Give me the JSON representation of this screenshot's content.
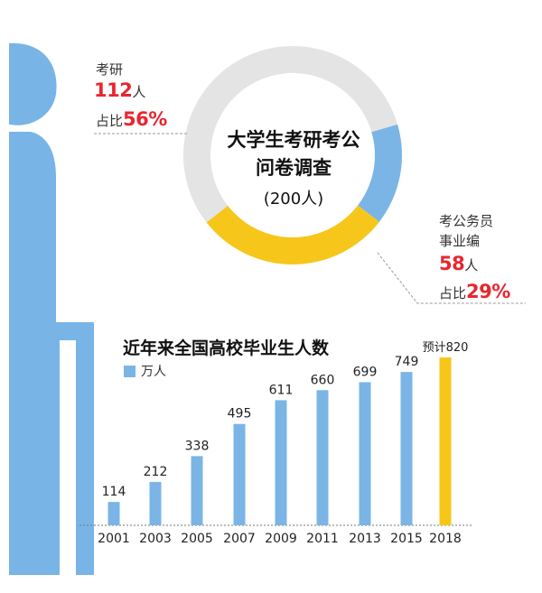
{
  "colors": {
    "blue": "#7ab5e6",
    "yellow": "#f6c61a",
    "gray": "#e4e4e4",
    "red": "#e8262f",
    "figure": "#78b4e6"
  },
  "survey": {
    "title_line1": "大学生考研考公",
    "title_line2": "问卷调查",
    "total": "(200人)",
    "kaoyan": {
      "label": "考研",
      "count": "112",
      "count_unit": "人",
      "share_label": "占比",
      "share": "56%"
    },
    "gongwu": {
      "label1": "考公务员",
      "label2": "事业编",
      "count": "58",
      "count_unit": "人",
      "share_label": "占比",
      "share": "29%"
    }
  },
  "bar_chart": {
    "title": "近年来全国高校毕业生人数",
    "legend": "万人"
  },
  "chart_data": [
    {
      "type": "pie",
      "title": "大学生考研考公问卷调查",
      "subtitle": "(200人)",
      "slices": [
        {
          "label": "考研",
          "value": 112,
          "percent": 56,
          "color": "#e4e4e4"
        },
        {
          "label": "考公务员事业编",
          "value": 58,
          "percent": 29,
          "color": "#f6c61a"
        },
        {
          "label": "",
          "value": 30,
          "percent": 15,
          "color": "#7ab5e6"
        }
      ]
    },
    {
      "type": "bar",
      "title": "近年来全国高校毕业生人数",
      "categories": [
        "2001",
        "2003",
        "2005",
        "2007",
        "2009",
        "2011",
        "2013",
        "2015",
        "2018"
      ],
      "values": [
        114,
        212,
        338,
        495,
        611,
        660,
        699,
        749,
        820
      ],
      "value_labels": [
        "114",
        "212",
        "338",
        "495",
        "611",
        "660",
        "699",
        "749",
        "预计820"
      ],
      "highlight": {
        "category": "2018",
        "color": "#f6c61a"
      },
      "series": [
        {
          "name": "万人",
          "values": [
            114,
            212,
            338,
            495,
            611,
            660,
            699,
            749,
            820
          ]
        }
      ],
      "ylim": [
        0,
        820
      ],
      "grid": false,
      "legend": "top-left"
    }
  ]
}
